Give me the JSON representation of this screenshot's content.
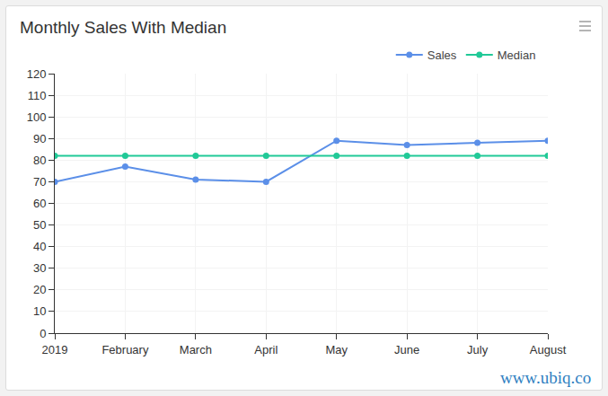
{
  "chart_data": {
    "type": "line",
    "title": "Monthly Sales With Median",
    "categories": [
      "2019",
      "February",
      "March",
      "April",
      "May",
      "June",
      "July",
      "August"
    ],
    "series": [
      {
        "name": "Sales",
        "color": "#5b8fe8",
        "values": [
          70,
          77,
          71,
          70,
          89,
          87,
          88,
          89
        ]
      },
      {
        "name": "Median",
        "color": "#20c997",
        "values": [
          82,
          82,
          82,
          82,
          82,
          82,
          82,
          82
        ]
      }
    ],
    "ylim": [
      0,
      120
    ],
    "yticks": [
      0,
      10,
      20,
      30,
      40,
      50,
      60,
      70,
      80,
      90,
      100,
      110,
      120
    ],
    "grid": true,
    "legend": "top-right",
    "marker": "circle",
    "annotations": [
      "www.ubiq.co"
    ]
  }
}
